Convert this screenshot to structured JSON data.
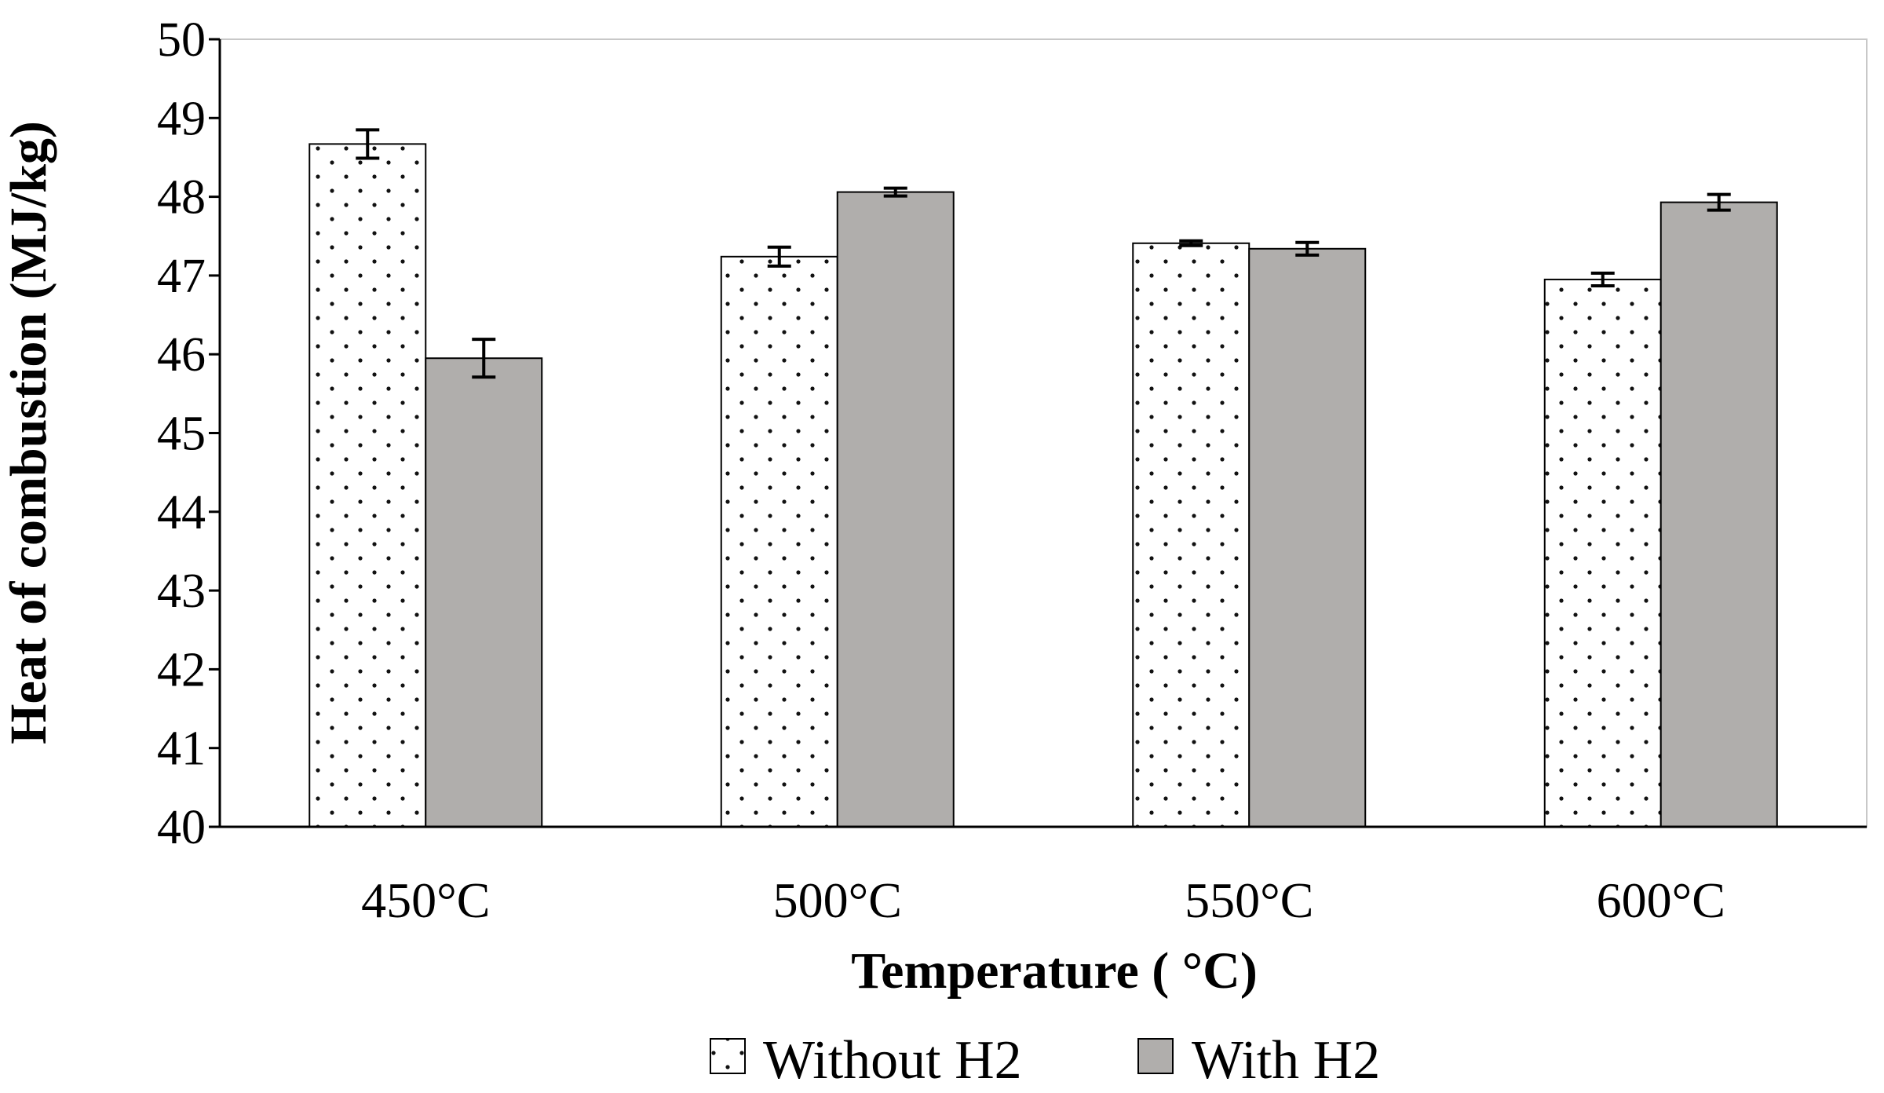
{
  "chart_data": {
    "type": "bar",
    "title": "",
    "xlabel": "Temperature ( °C)",
    "ylabel": "Heat of combustion  (MJ/kg)",
    "categories": [
      "450°C",
      "500°C",
      "550°C",
      "600°C"
    ],
    "ylim": [
      40,
      50
    ],
    "yticks": [
      "40",
      "41",
      "42",
      "43",
      "44",
      "45",
      "46",
      "47",
      "48",
      "49",
      "50"
    ],
    "grid": false,
    "legend_position": "bottom",
    "series": [
      {
        "name": "Without H2",
        "values": [
          48.67,
          47.24,
          47.41,
          46.95
        ],
        "errors": [
          0.18,
          0.12,
          0.03,
          0.08
        ],
        "fill": "#ffffff",
        "pattern": "dots"
      },
      {
        "name": "With H2",
        "values": [
          45.95,
          48.06,
          47.34,
          47.93
        ],
        "errors": [
          0.24,
          0.05,
          0.08,
          0.1
        ],
        "fill": "#b0aeac",
        "pattern": "solid"
      }
    ]
  }
}
